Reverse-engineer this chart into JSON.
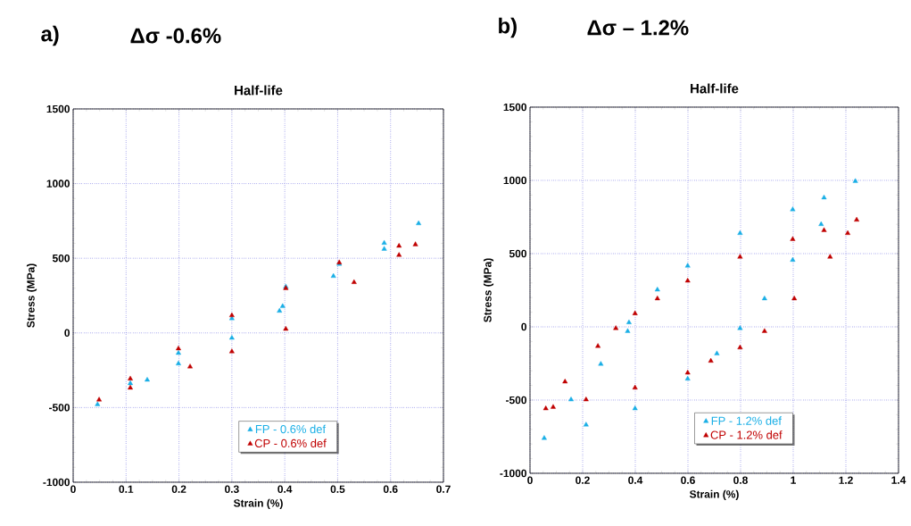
{
  "chart_data": [
    {
      "type": "scatter",
      "title": "Half-life",
      "annotations": [
        "a)",
        "Δσ -0.6%"
      ],
      "xlabel": "Strain (%)",
      "ylabel": "Stress (MPa)",
      "xlim": [
        0,
        0.7
      ],
      "ylim": [
        -1000,
        1500
      ],
      "xticks": [
        0,
        0.1,
        0.2,
        0.3,
        0.4,
        0.5,
        0.6,
        0.7
      ],
      "yticks": [
        -1000,
        -500,
        0,
        500,
        1000,
        1500
      ],
      "grid": true,
      "legend": "bottom",
      "marker": "triangle",
      "series": [
        {
          "name": "FP - 0.6% def",
          "color": "#1aafe6",
          "x": [
            0.046,
            0.108,
            0.199,
            0.3,
            0.402,
            0.503,
            0.588,
            0.653,
            0.588,
            0.492,
            0.396,
            0.39,
            0.3,
            0.199,
            0.14
          ],
          "values": [
            -479,
            -338,
            -135,
            97,
            309,
            461,
            602,
            733,
            562,
            380,
            178,
            147,
            -34,
            -206,
            -315
          ]
        },
        {
          "name": "CP - 0.6% def",
          "color": "#c00000",
          "x": [
            0.049,
            0.108,
            0.199,
            0.3,
            0.402,
            0.503,
            0.616,
            0.647,
            0.616,
            0.531,
            0.402,
            0.3,
            0.221,
            0.108
          ],
          "values": [
            -448,
            -307,
            -105,
            117,
            299,
            471,
            582,
            592,
            521,
            339,
            26,
            -125,
            -226,
            -368
          ]
        }
      ]
    },
    {
      "type": "scatter",
      "title": "Half-life",
      "annotations": [
        "b)",
        "Δσ – 1.2%"
      ],
      "xlabel": "Strain (%)",
      "ylabel": "Stress (MPa)",
      "xlim": [
        0,
        1.4
      ],
      "ylim": [
        -1000,
        1500
      ],
      "xticks": [
        0,
        0.2,
        0.4,
        0.6,
        0.8,
        1,
        1.2,
        1.4
      ],
      "yticks": [
        -1000,
        -500,
        0,
        500,
        1000,
        1500
      ],
      "grid": true,
      "legend": "bottom",
      "marker": "triangle",
      "series": [
        {
          "name": "FP - 1.2% def",
          "color": "#1aafe6",
          "x": [
            0.054,
            0.213,
            0.399,
            0.599,
            0.71,
            0.798,
            0.891,
            0.998,
            1.106,
            1.236,
            1.117,
            0.998,
            0.798,
            0.599,
            0.484,
            0.376,
            0.371,
            0.269,
            0.156
          ],
          "values": [
            -760,
            -669,
            -558,
            -355,
            -183,
            -10,
            193,
            456,
            700,
            994,
            882,
            801,
            639,
            416,
            253,
            30,
            -30,
            -254,
            -497
          ]
        },
        {
          "name": "CP - 1.2% def",
          "color": "#c00000",
          "x": [
            0.06,
            0.133,
            0.258,
            0.326,
            0.399,
            0.484,
            0.599,
            0.798,
            0.998,
            1.117,
            1.241,
            1.207,
            1.14,
            1.004,
            0.891,
            0.798,
            0.687,
            0.599,
            0.399,
            0.213,
            0.088
          ],
          "values": [
            -558,
            -375,
            -132,
            -10,
            91,
            193,
            314,
            477,
            598,
            659,
            730,
            639,
            477,
            193,
            -30,
            -142,
            -233,
            -314,
            -416,
            -497,
            -548
          ]
        }
      ]
    }
  ]
}
